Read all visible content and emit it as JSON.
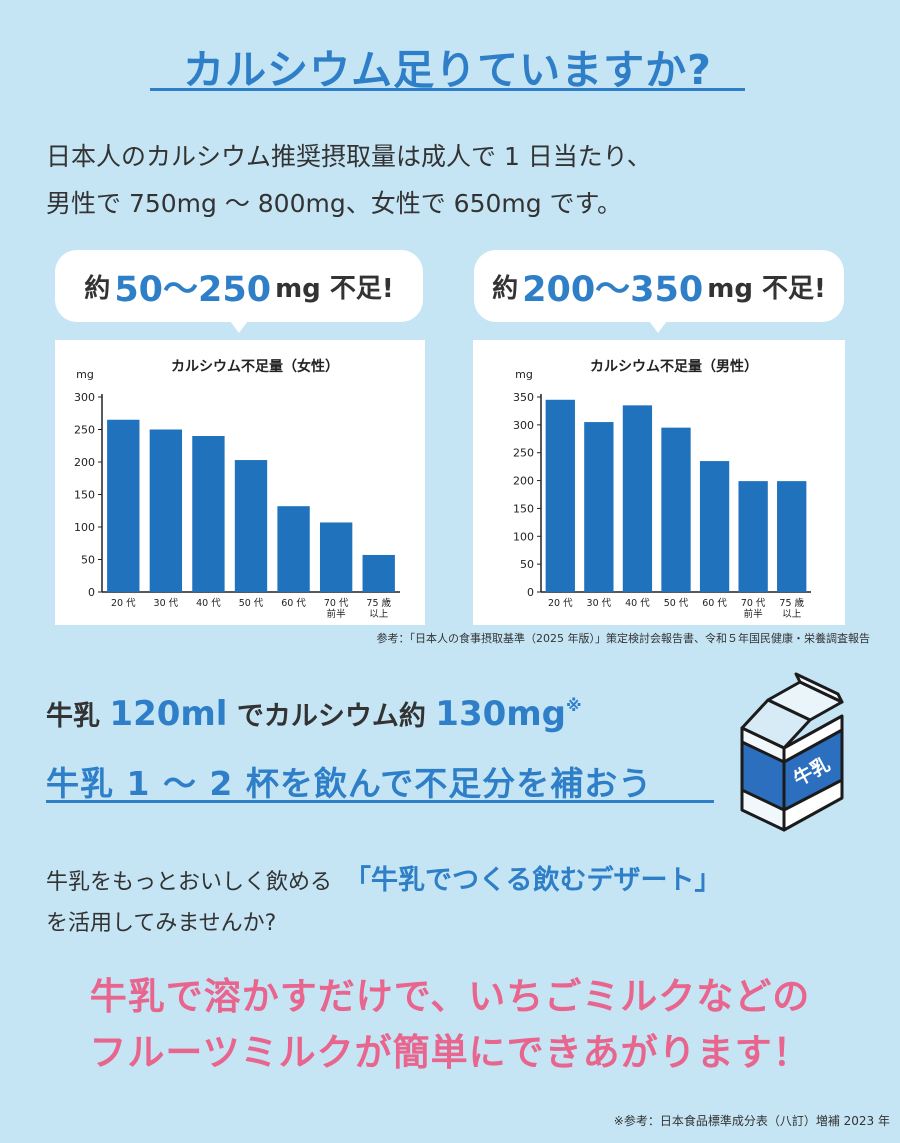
{
  "title": "カルシウム足りていますか?",
  "intro": {
    "line1": "日本人のカルシウム推奨摂取量は成人で 1 日当たり、",
    "line2": "男性で 750mg 〜 800mg、女性で 650mg です。"
  },
  "bubbles": {
    "female": {
      "pre": "約",
      "big": "50〜250",
      "post": "mg 不足!"
    },
    "male": {
      "pre": "約",
      "big": "200〜350",
      "post": "mg 不足!"
    }
  },
  "colors": {
    "bar": "#1f72bb",
    "accent": "#2e7fc8",
    "pink": "#e8658e",
    "background": "#c5e5f5"
  },
  "chart_data": [
    {
      "type": "bar",
      "title": "カルシウム不足量（女性）",
      "ylabel": "mg",
      "categories": [
        "20 代",
        "30 代",
        "40 代",
        "50 代",
        "60 代",
        "70 代 前半",
        "75 歳 以上"
      ],
      "category_lines": [
        [
          "20 代"
        ],
        [
          "30 代"
        ],
        [
          "40 代"
        ],
        [
          "50 代"
        ],
        [
          "60 代"
        ],
        [
          "70 代",
          "前半"
        ],
        [
          "75 歳",
          "以上"
        ]
      ],
      "values": [
        265,
        250,
        240,
        203,
        132,
        107,
        57
      ],
      "ylim": [
        0,
        300
      ],
      "yticks": [
        0,
        50,
        100,
        150,
        200,
        250,
        300
      ],
      "grid": false
    },
    {
      "type": "bar",
      "title": "カルシウム不足量（男性）",
      "ylabel": "mg",
      "categories": [
        "20 代",
        "30 代",
        "40 代",
        "50 代",
        "60 代",
        "70 代 前半",
        "75 歳 以上"
      ],
      "category_lines": [
        [
          "20 代"
        ],
        [
          "30 代"
        ],
        [
          "40 代"
        ],
        [
          "50 代"
        ],
        [
          "60 代"
        ],
        [
          "70 代",
          "前半"
        ],
        [
          "75 歳",
          "以上"
        ]
      ],
      "values": [
        345,
        305,
        335,
        295,
        235,
        199,
        199
      ],
      "ylim": [
        0,
        350
      ],
      "yticks": [
        0,
        50,
        100,
        150,
        200,
        250,
        300,
        350
      ],
      "grid": false
    }
  ],
  "source_note": "参考：「日本人の食事摂取基準（2025 年版）」策定検討会報告書、令和５年国民健康・栄養調査報告",
  "milk": {
    "p1": "牛乳 ",
    "v1": "120ml",
    "p2": " でカルシウム約 ",
    "v2": "130mg",
    "mark": "※"
  },
  "drink_text": "牛乳 1 〜 2 杯を飲んで不足分を補おう",
  "carton_label": "牛乳",
  "dessert": {
    "lead": "牛乳をもっとおいしく飲める",
    "name": "「牛乳でつくる飲むデザート」",
    "line2": "を活用してみませんか?"
  },
  "pink": {
    "line1": "牛乳で溶かすだけで、いちごミルクなどの",
    "line2": "フルーツミルクが簡単にできあがります！"
  },
  "footnote": "※参考：日本食品標準成分表（八訂）増補 2023 年"
}
